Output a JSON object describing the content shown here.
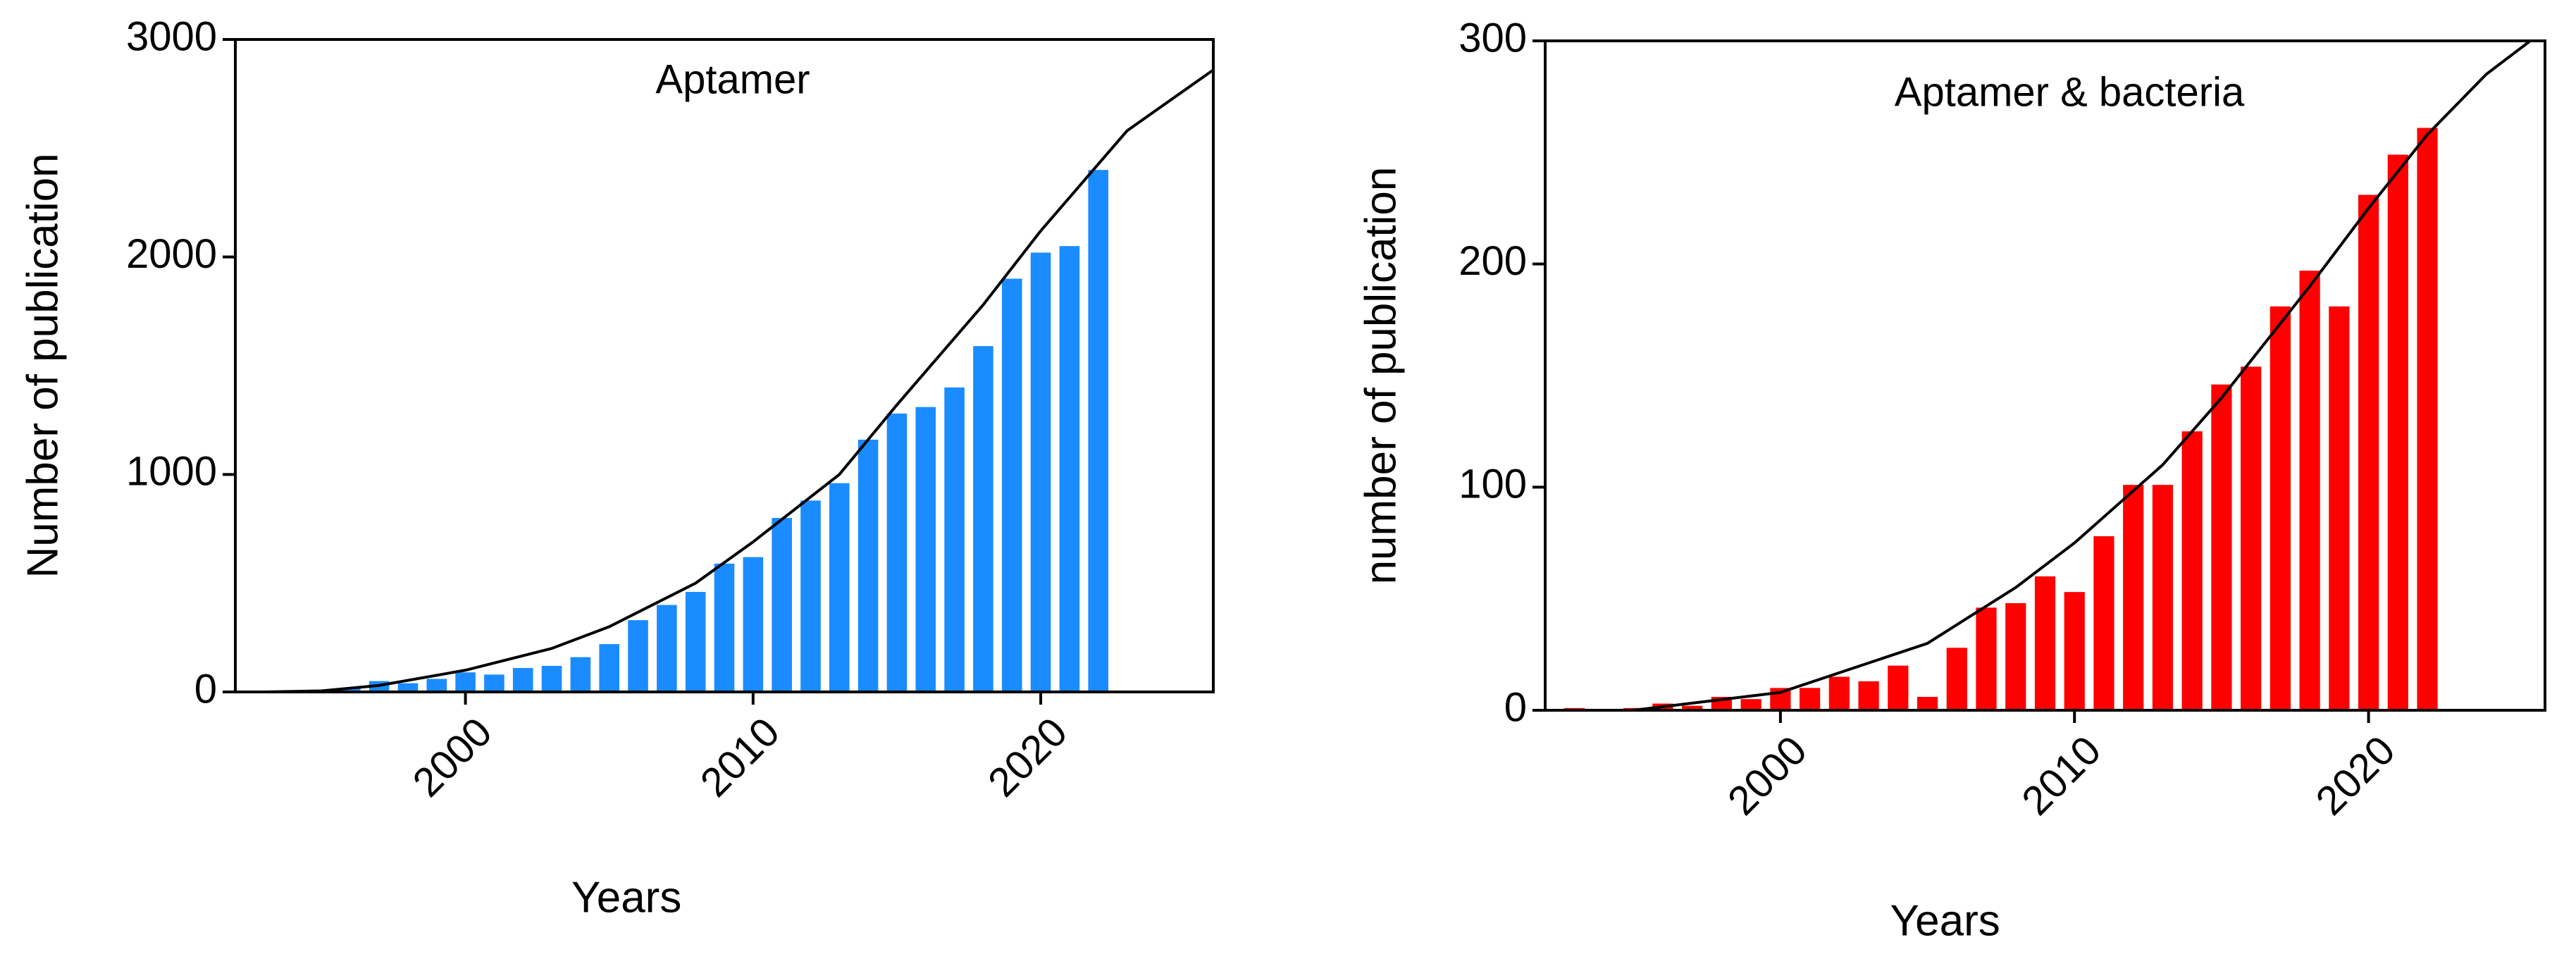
{
  "chart_data": [
    {
      "type": "bar",
      "title": "Aptamer",
      "x_label": "Years",
      "y_label": "Number of publication",
      "x": [
        1993,
        1994,
        1995,
        1996,
        1997,
        1998,
        1999,
        2000,
        2001,
        2002,
        2003,
        2004,
        2005,
        2006,
        2007,
        2008,
        2009,
        2010,
        2011,
        2012,
        2013,
        2014,
        2015,
        2016,
        2017,
        2018,
        2019,
        2020,
        2021,
        2022
      ],
      "values": [
        2,
        3,
        5,
        20,
        50,
        40,
        60,
        90,
        80,
        110,
        120,
        160,
        220,
        330,
        400,
        460,
        590,
        620,
        800,
        880,
        960,
        1160,
        1280,
        1310,
        1400,
        1590,
        1900,
        2020,
        2050,
        2400
      ],
      "color": "#1a8cff",
      "curve": {
        "type": "line",
        "color": "#000000",
        "x": [
          1993,
          1995,
          1997,
          2000,
          2003,
          2005,
          2008,
          2010,
          2013,
          2015,
          2018,
          2020,
          2023,
          2026
        ],
        "values": [
          0,
          5,
          30,
          100,
          200,
          300,
          500,
          690,
          1000,
          1320,
          1780,
          2120,
          2580,
          2860
        ]
      },
      "xlim": [
        1992,
        2026
      ],
      "xticks": [
        2000,
        2010,
        2020
      ],
      "ylim": [
        0,
        3000
      ],
      "yticks": [
        0,
        1000,
        2000,
        3000
      ]
    },
    {
      "type": "bar",
      "title": "Aptamer & bacteria",
      "x_label": "Years",
      "y_label": "number of publication",
      "x": [
        1993,
        1994,
        1995,
        1996,
        1997,
        1998,
        1999,
        2000,
        2001,
        2002,
        2003,
        2004,
        2005,
        2006,
        2007,
        2008,
        2009,
        2010,
        2011,
        2012,
        2013,
        2014,
        2015,
        2016,
        2017,
        2018,
        2019,
        2020,
        2021,
        2022
      ],
      "values": [
        1,
        0,
        1,
        3,
        2,
        6,
        5,
        10,
        10,
        15,
        13,
        20,
        6,
        28,
        46,
        48,
        60,
        53,
        78,
        101,
        101,
        125,
        146,
        154,
        181,
        197,
        181,
        231,
        249,
        261
      ],
      "color": "#ff0000",
      "curve": {
        "type": "line",
        "color": "#000000",
        "x": [
          1995,
          2000,
          2005,
          2008,
          2010,
          2013,
          2015,
          2018,
          2020,
          2022,
          2024,
          2025.5
        ],
        "values": [
          0,
          8,
          30,
          55,
          75,
          110,
          140,
          190,
          225,
          258,
          285,
          300
        ]
      },
      "xlim": [
        1992,
        2026
      ],
      "xticks": [
        2000,
        2010,
        2020
      ],
      "ylim": [
        0,
        300
      ],
      "yticks": [
        0,
        100,
        200,
        300
      ]
    }
  ]
}
